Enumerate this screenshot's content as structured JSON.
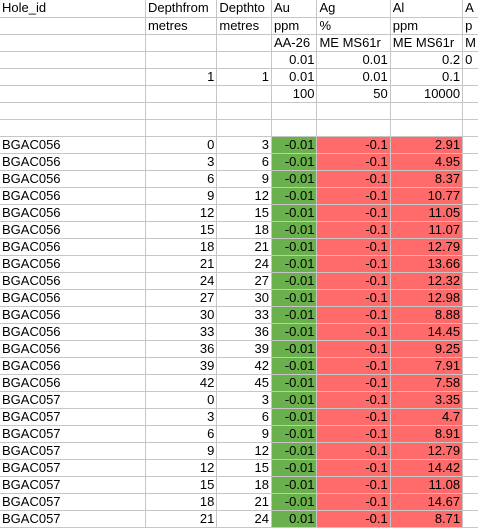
{
  "header_rows": [
    [
      "Hole_id",
      "Depthfrom",
      "Depthto",
      "Au",
      "Ag",
      "Al",
      "A"
    ],
    [
      "",
      "metres",
      "metres",
      "ppm",
      "%",
      "ppm",
      "p"
    ],
    [
      "",
      "",
      "",
      "AA-26",
      "ME MS61r",
      "ME MS61r",
      "M"
    ],
    [
      "",
      "",
      "",
      "0.01",
      "0.01",
      "0.2",
      "0"
    ],
    [
      "",
      "1",
      "1",
      "0.01",
      "0.01",
      "0.1",
      ""
    ],
    [
      "",
      "",
      "",
      "100",
      "50",
      "10000",
      ""
    ],
    [
      "",
      "",
      "",
      "",
      "",
      "",
      ""
    ],
    [
      "",
      "",
      "",
      "",
      "",
      "",
      ""
    ]
  ],
  "data_rows": [
    [
      "BGAC056",
      "0",
      "3",
      "-0.01",
      "-0.1",
      "2.91"
    ],
    [
      "BGAC056",
      "3",
      "6",
      "-0.01",
      "-0.1",
      "4.95"
    ],
    [
      "BGAC056",
      "6",
      "9",
      "-0.01",
      "-0.1",
      "8.37"
    ],
    [
      "BGAC056",
      "9",
      "12",
      "-0.01",
      "-0.1",
      "10.77"
    ],
    [
      "BGAC056",
      "12",
      "15",
      "-0.01",
      "-0.1",
      "11.05"
    ],
    [
      "BGAC056",
      "15",
      "18",
      "-0.01",
      "-0.1",
      "11.07"
    ],
    [
      "BGAC056",
      "18",
      "21",
      "-0.01",
      "-0.1",
      "12.79"
    ],
    [
      "BGAC056",
      "21",
      "24",
      "-0.01",
      "-0.1",
      "13.66"
    ],
    [
      "BGAC056",
      "24",
      "27",
      "-0.01",
      "-0.1",
      "12.32"
    ],
    [
      "BGAC056",
      "27",
      "30",
      "-0.01",
      "-0.1",
      "12.98"
    ],
    [
      "BGAC056",
      "30",
      "33",
      "-0.01",
      "-0.1",
      "8.88"
    ],
    [
      "BGAC056",
      "33",
      "36",
      "-0.01",
      "-0.1",
      "14.45"
    ],
    [
      "BGAC056",
      "36",
      "39",
      "-0.01",
      "-0.1",
      "9.25"
    ],
    [
      "BGAC056",
      "39",
      "42",
      "-0.01",
      "-0.1",
      "7.91"
    ],
    [
      "BGAC056",
      "42",
      "45",
      "-0.01",
      "-0.1",
      "7.58"
    ],
    [
      "BGAC057",
      "0",
      "3",
      "-0.01",
      "-0.1",
      "3.35"
    ],
    [
      "BGAC057",
      "3",
      "6",
      "-0.01",
      "-0.1",
      "4.7"
    ],
    [
      "BGAC057",
      "6",
      "9",
      "-0.01",
      "-0.1",
      "8.91"
    ],
    [
      "BGAC057",
      "9",
      "12",
      "-0.01",
      "-0.1",
      "12.79"
    ],
    [
      "BGAC057",
      "12",
      "15",
      "-0.01",
      "-0.1",
      "14.42"
    ],
    [
      "BGAC057",
      "15",
      "18",
      "-0.01",
      "-0.1",
      "11.08"
    ],
    [
      "BGAC057",
      "18",
      "21",
      "-0.01",
      "-0.1",
      "14.67"
    ],
    [
      "BGAC057",
      "21",
      "24",
      "0.01",
      "-0.1",
      "8.71"
    ]
  ],
  "colors": {
    "au_fill": "#6ab04c",
    "ag_al_fill": "#ff6b6b",
    "gridline": "#c6c6c6"
  }
}
